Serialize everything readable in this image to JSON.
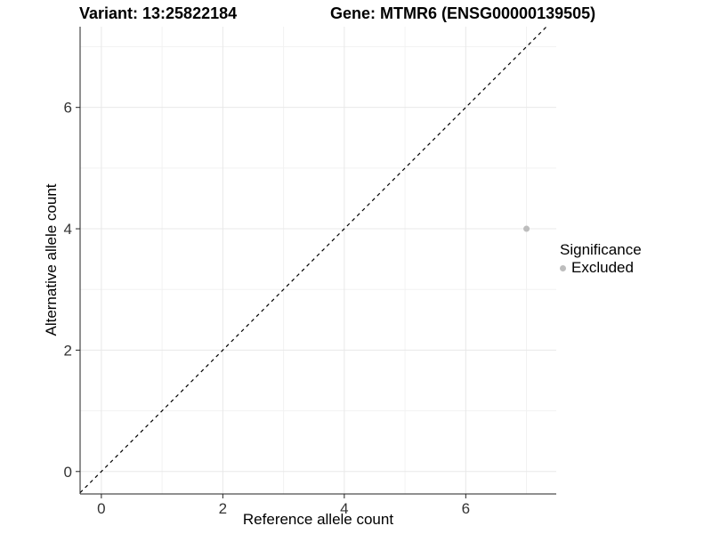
{
  "chart_data": {
    "type": "scatter",
    "title_variant": "Variant: 13:25822184",
    "title_gene": "Gene: MTMR6 (ENSG00000139505)",
    "xlabel": "Reference allele count",
    "ylabel": "Alternative allele count",
    "xlim": [
      -0.35,
      7.49
    ],
    "ylim": [
      -0.37,
      7.33
    ],
    "x_major_ticks": [
      0,
      2,
      4,
      6
    ],
    "y_major_ticks": [
      0,
      2,
      4,
      6
    ],
    "x_minor_ticks": [
      1,
      3,
      5,
      7
    ],
    "y_minor_ticks": [
      1,
      3,
      5,
      7
    ],
    "grid": true,
    "points": [
      {
        "x": 7,
        "y": 4,
        "significance": "Excluded"
      }
    ],
    "reference_line": {
      "type": "identity",
      "slope": 1,
      "intercept": 0,
      "style": "dashed"
    },
    "legend": {
      "title": "Significance",
      "position": "right",
      "items": [
        {
          "label": "Excluded",
          "color": "#bdbdbd"
        }
      ]
    },
    "colors": {
      "excluded_point": "#bdbdbd",
      "grid_major": "#e8e8e8",
      "grid_minor": "#f2f2f2",
      "axis_line": "#222222",
      "tick_label": "#333333",
      "reference_line": "#000000"
    }
  }
}
